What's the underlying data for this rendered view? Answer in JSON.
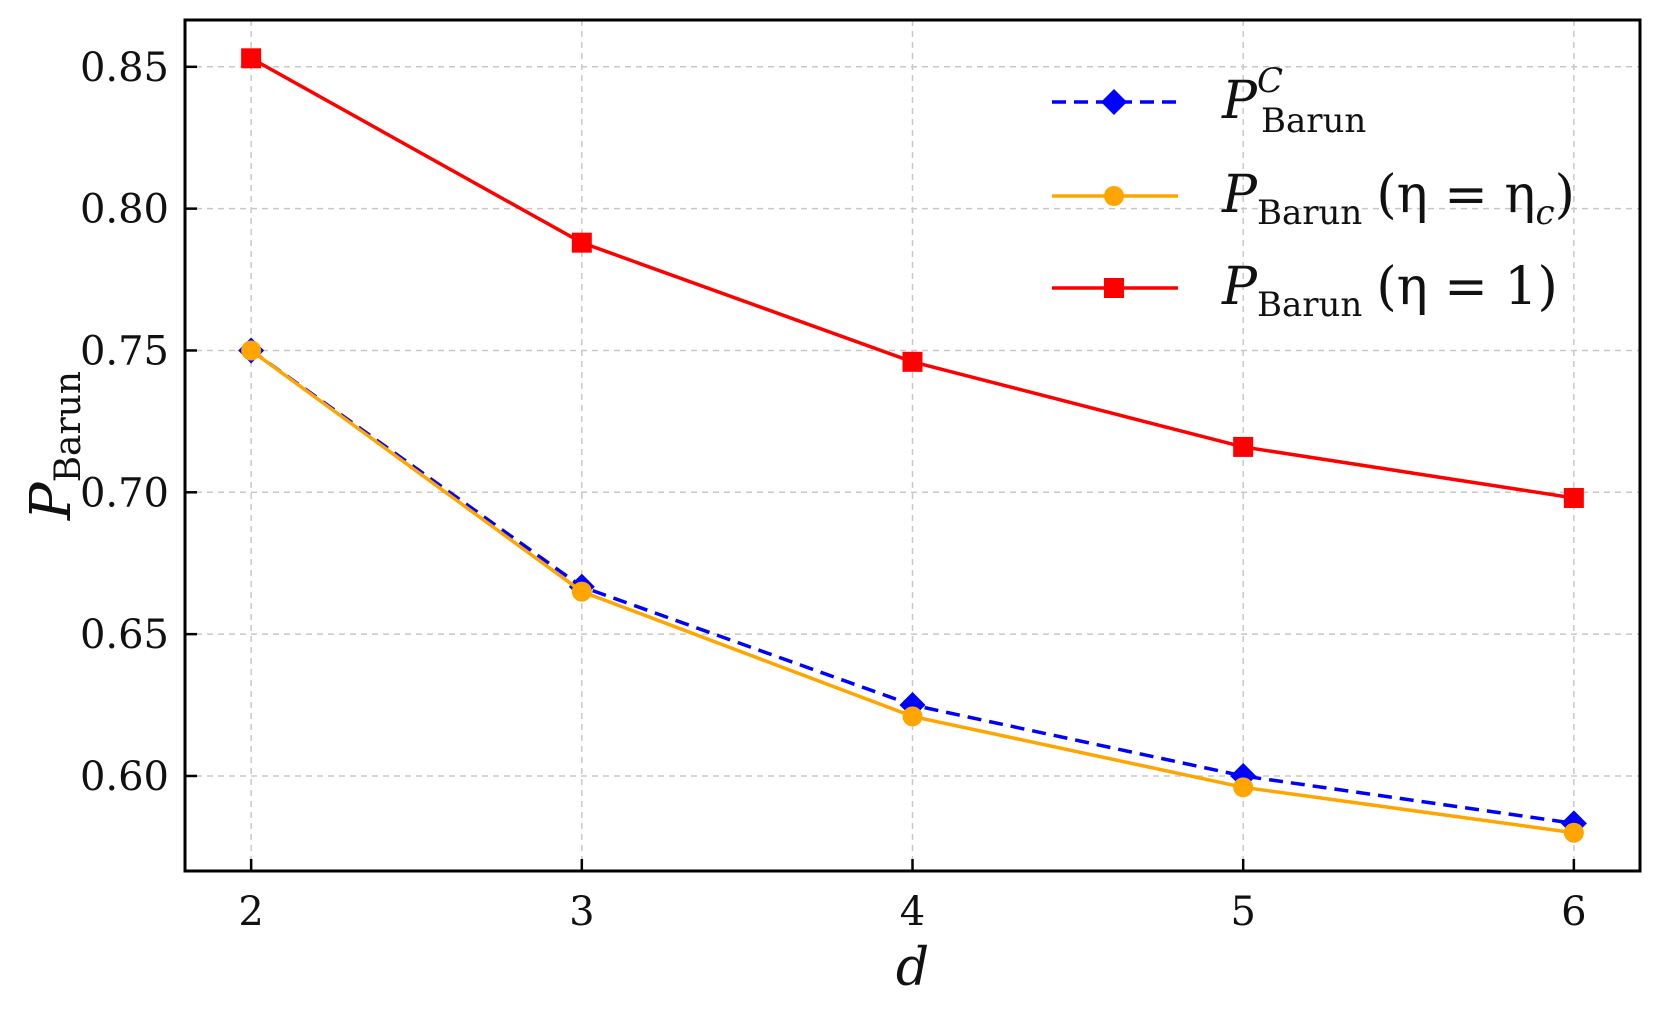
{
  "chart_data": {
    "type": "line",
    "xlabel": "d",
    "ylabel": {
      "main": "P",
      "sub": "Barun"
    },
    "x": [
      2,
      3,
      4,
      5,
      6
    ],
    "xlim": [
      1.8,
      6.2
    ],
    "ylim": [
      0.5665,
      0.8665
    ],
    "xticks": [
      "2",
      "3",
      "4",
      "5",
      "6"
    ],
    "yticks": [
      "0.60",
      "0.65",
      "0.70",
      "0.75",
      "0.80",
      "0.85"
    ],
    "grid": true,
    "legend_position": "top-right",
    "series": [
      {
        "name": "P^C_Barun",
        "legend": {
          "main": "P",
          "sup": "C",
          "sub": "Barun",
          "tail": ""
        },
        "values": [
          0.75,
          0.6667,
          0.625,
          0.6,
          0.5833
        ],
        "color": "#0000ff",
        "dash": true,
        "marker": "diamond"
      },
      {
        "name": "P_Barun (η = η_c)",
        "legend": {
          "main": "P",
          "sup": "",
          "sub": "Barun",
          "tail": "(η = η",
          "tail_sub": "c",
          "tail_end": ")"
        },
        "values": [
          0.75,
          0.665,
          0.621,
          0.596,
          0.58
        ],
        "color": "#ffa500",
        "dash": false,
        "marker": "circle"
      },
      {
        "name": "P_Barun (η = 1)",
        "legend": {
          "main": "P",
          "sup": "",
          "sub": "Barun",
          "tail": "(η = 1)",
          "tail_sub": "",
          "tail_end": ""
        },
        "values": [
          0.853,
          0.788,
          0.746,
          0.716,
          0.698
        ],
        "color": "#ff0000",
        "dash": false,
        "marker": "square"
      }
    ]
  }
}
